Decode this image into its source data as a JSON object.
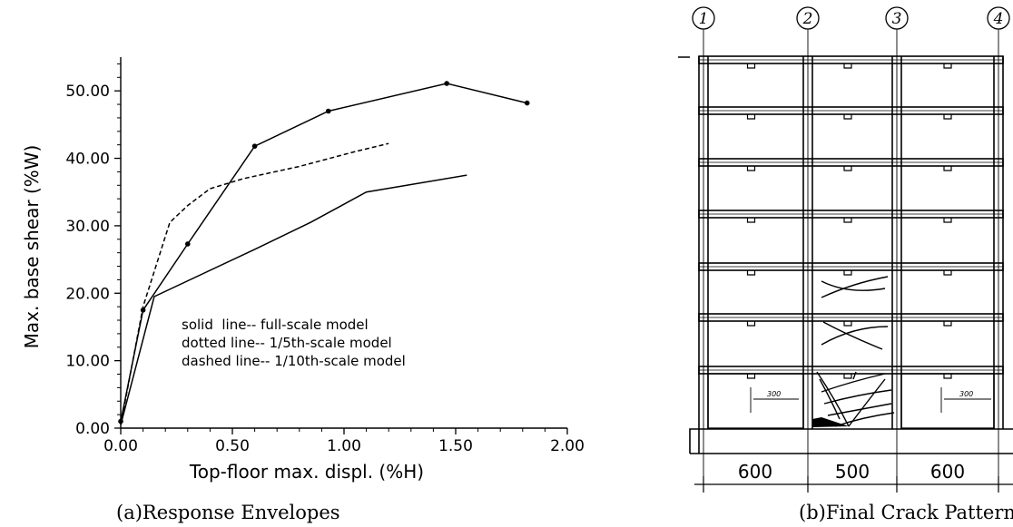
{
  "chart_data": {
    "type": "line",
    "xlabel": "Top-floor max. displ. (%H)",
    "ylabel": "Max. base shear (%W)",
    "xlim": [
      0,
      2
    ],
    "ylim": [
      0,
      55
    ],
    "x_ticks": [
      "0.00",
      "0.50",
      "1.00",
      "1.50",
      "2.00"
    ],
    "y_ticks": [
      "0.00",
      "10.00",
      "20.00",
      "30.00",
      "40.00",
      "50.00"
    ],
    "legend": [
      "solid  line-- full-scale model",
      "dotted line-- 1/5th-scale model",
      "dashed line-- 1/10th-scale model"
    ],
    "legend_position": "center-right",
    "series": [
      {
        "style": "solid-markers",
        "points": [
          [
            0.0,
            1.0
          ],
          [
            0.1,
            17.5
          ],
          [
            0.3,
            27.3
          ],
          [
            0.6,
            41.8
          ],
          [
            0.93,
            47.0
          ],
          [
            1.46,
            51.1
          ],
          [
            1.82,
            48.2
          ]
        ]
      },
      {
        "style": "solid",
        "points": [
          [
            0.0,
            0.5
          ],
          [
            0.15,
            19.5
          ],
          [
            0.6,
            26.5
          ],
          [
            0.85,
            30.5
          ],
          [
            1.1,
            35.0
          ],
          [
            1.55,
            37.5
          ]
        ]
      },
      {
        "style": "dashed",
        "points": [
          [
            0.0,
            0.5
          ],
          [
            0.1,
            18.0
          ],
          [
            0.22,
            30.5
          ],
          [
            0.3,
            33.0
          ],
          [
            0.4,
            35.5
          ],
          [
            0.55,
            37.0
          ],
          [
            0.8,
            38.8
          ],
          [
            1.05,
            41.0
          ],
          [
            1.2,
            42.2
          ]
        ]
      }
    ]
  },
  "captions": {
    "left": "(a)Response Envelopes",
    "right": "(b)Final Crack Pattern"
  },
  "frame": {
    "gridlines": [
      "1",
      "2",
      "3",
      "4"
    ],
    "bay_dims": [
      "600",
      "500",
      "600"
    ],
    "wall_dims": [
      "300",
      "300"
    ]
  }
}
